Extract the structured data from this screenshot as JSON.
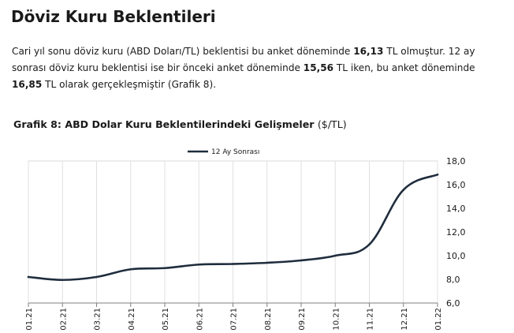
{
  "page": {
    "title": "Döviz Kuru Beklentileri",
    "paragraph": [
      {
        "t": "Cari yıl sonu döviz kuru (ABD Doları/TL) beklentisi bu anket döneminde ",
        "b": false
      },
      {
        "t": "16,13",
        "b": true
      },
      {
        "t": " TL olmuştur. 12 ay sonrası döviz kuru beklentisi ise bir önceki anket döneminde ",
        "b": false
      },
      {
        "t": "15,56",
        "b": true
      },
      {
        "t": " TL iken, bu anket döneminde ",
        "b": false
      },
      {
        "t": "16,85",
        "b": true
      },
      {
        "t": " TL olarak gerçekleşmiştir (Grafik 8).",
        "b": false
      }
    ],
    "chart_title": "Grafik 8: ABD Dolar Kuru Beklentilerindeki Gelişmeler",
    "chart_title_unit": "($/TL)"
  },
  "chart_data": {
    "type": "line",
    "title": "Grafik 8: ABD Dolar Kuru Beklentilerindeki Gelişmeler ($/TL)",
    "categories": [
      "01.21",
      "02.21",
      "03.21",
      "04.21",
      "05.21",
      "06.21",
      "07.21",
      "08.21",
      "09.21",
      "10.21",
      "11.21",
      "12.21",
      "01.22"
    ],
    "series": [
      {
        "name": "12 Ay Sonrası",
        "color": "#1f2d3d",
        "values": [
          8.2,
          7.95,
          8.2,
          8.85,
          8.95,
          9.25,
          9.3,
          9.4,
          9.6,
          10.0,
          10.95,
          15.56,
          16.85
        ]
      }
    ],
    "y_ticks": [
      "6,0",
      "8,0",
      "10,0",
      "12,0",
      "14,0",
      "16,0",
      "18,0"
    ],
    "ylim": [
      6,
      18
    ],
    "y_axis_side": "right",
    "grid": "vertical",
    "legend": "top"
  }
}
